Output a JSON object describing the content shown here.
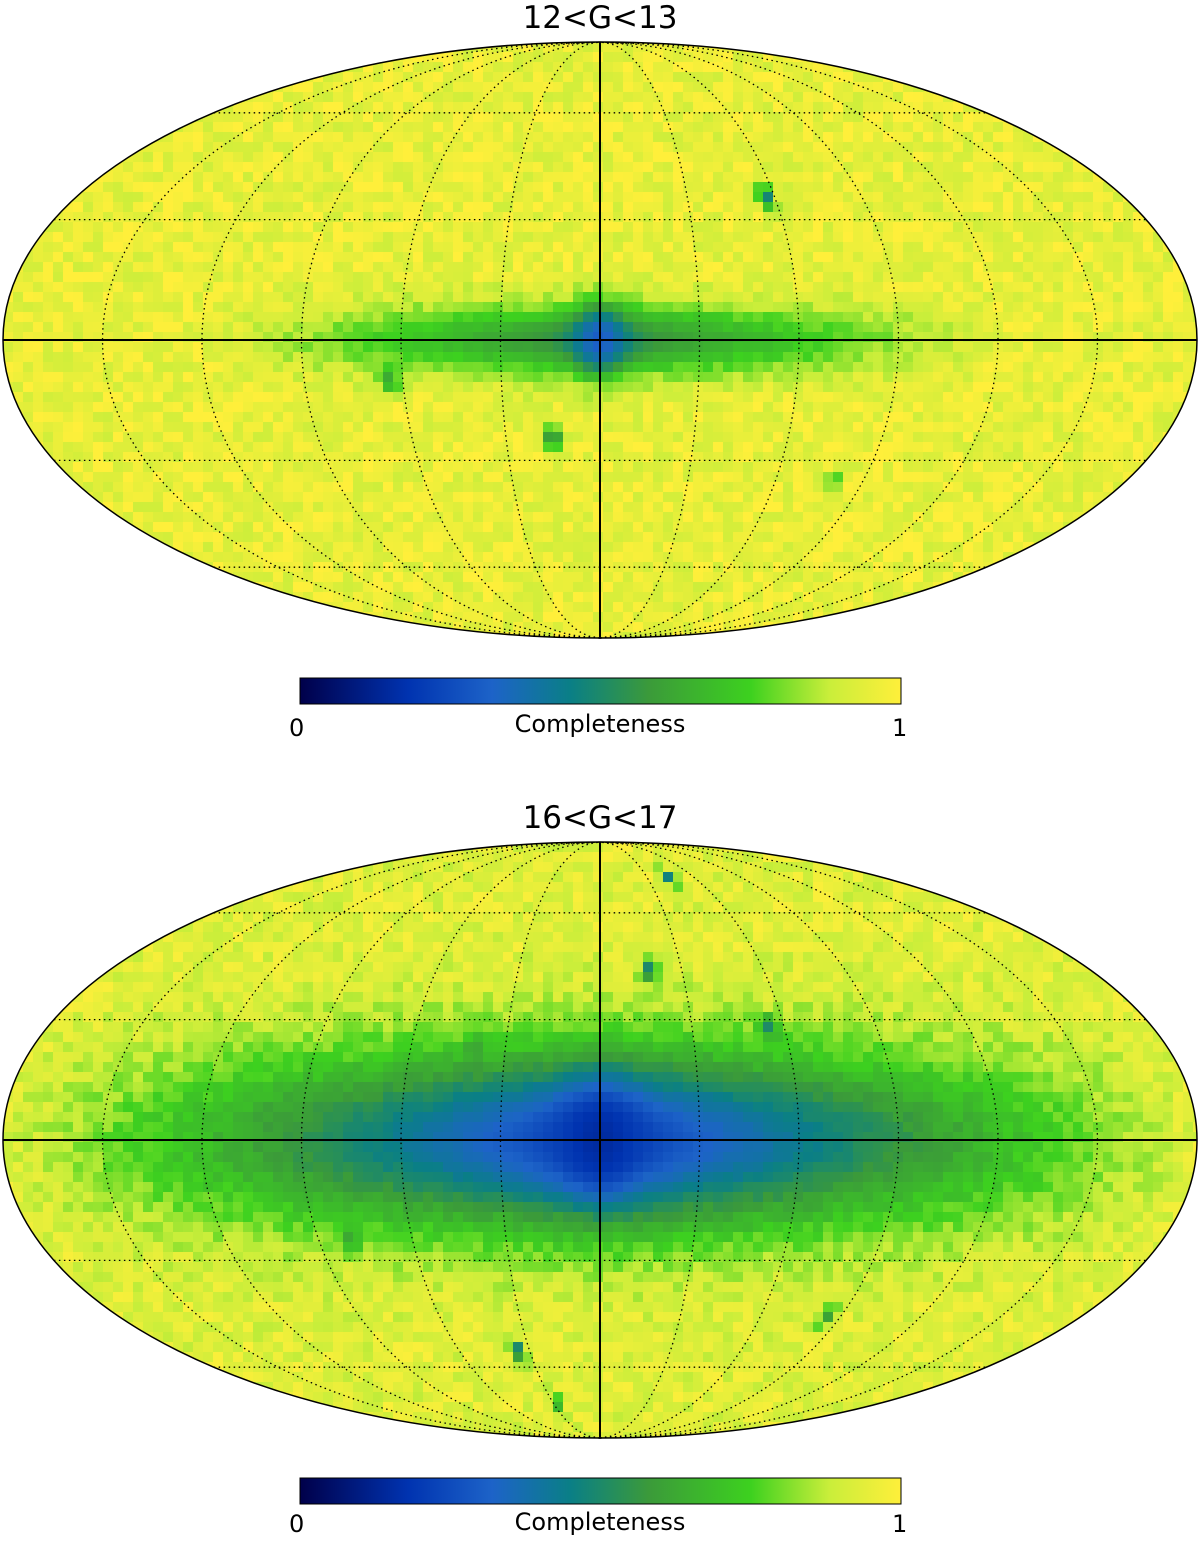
{
  "colormap": {
    "stops": [
      {
        "t": 0.0,
        "color": "#00004a"
      },
      {
        "t": 0.18,
        "color": "#0033b0"
      },
      {
        "t": 0.32,
        "color": "#1d63c8"
      },
      {
        "t": 0.45,
        "color": "#0a7f86"
      },
      {
        "t": 0.58,
        "color": "#3b9a3a"
      },
      {
        "t": 0.75,
        "color": "#3dd11f"
      },
      {
        "t": 0.88,
        "color": "#c9ee3a"
      },
      {
        "t": 1.0,
        "color": "#ffef3a"
      }
    ],
    "range": [
      0,
      1
    ]
  },
  "panels": [
    {
      "title": "12<G<13",
      "colorbar": {
        "min_label": "0",
        "max_label": "1",
        "label": "Completeness"
      },
      "map": {
        "projection": "Mollweide",
        "background_completeness": 0.95,
        "plane_band": {
          "min_completeness": 0.55,
          "width_deg": 6,
          "extent_deg": 120
        },
        "center_bulge": {
          "min_completeness": 0.3,
          "radius_deg": 8
        },
        "spots": [
          {
            "lon": -15,
            "lat": -24,
            "value": 0.5
          },
          {
            "lon": 57,
            "lat": 36,
            "value": 0.45
          },
          {
            "lon": -64,
            "lat": -10,
            "value": 0.6
          },
          {
            "lon": 80,
            "lat": -35,
            "value": 0.75
          }
        ]
      }
    },
    {
      "title": "16<G<17",
      "colorbar": {
        "min_label": "0",
        "max_label": "1",
        "label": "Completeness"
      },
      "map": {
        "projection": "Mollweide",
        "background_completeness": 0.93,
        "plane_band": {
          "min_completeness": 0.25,
          "width_deg": 16,
          "extent_deg": 180
        },
        "center_bulge": {
          "min_completeness": 0.15,
          "radius_deg": 12
        },
        "spots": [
          {
            "lon": -35,
            "lat": -55,
            "value": 0.4
          },
          {
            "lon": -27,
            "lat": -72,
            "value": 0.45
          },
          {
            "lon": 45,
            "lat": 72,
            "value": 0.35
          },
          {
            "lon": 55,
            "lat": 28,
            "value": 0.5
          },
          {
            "lon": 18,
            "lat": 43,
            "value": 0.45
          },
          {
            "lon": -40,
            "lat": 23,
            "value": 0.6
          },
          {
            "lon": -80,
            "lat": -25,
            "value": 0.6
          },
          {
            "lon": 85,
            "lat": -45,
            "value": 0.6
          }
        ]
      }
    }
  ]
}
